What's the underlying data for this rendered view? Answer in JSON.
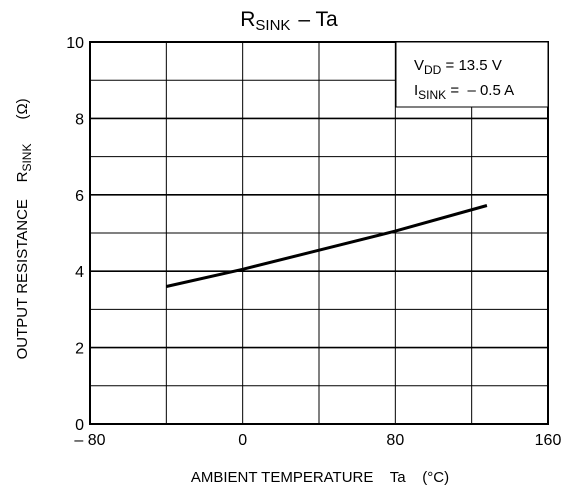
{
  "chart_data": {
    "type": "line",
    "title_main": "R",
    "title_sub": "SINK",
    "title_rest": "–  Ta",
    "xlabel": "AMBIENT TEMPERATURE    Ta    (°C)",
    "ylabel_main": "OUTPUT RESISTANCE    R",
    "ylabel_sub": "SINK",
    "ylabel_unit": "(Ω)",
    "xlim": [
      -80,
      160
    ],
    "ylim": [
      0,
      10
    ],
    "x_ticks": [
      -80,
      0,
      80,
      160
    ],
    "x_tick_labels": [
      "– 80",
      "0",
      "80",
      "160"
    ],
    "y_ticks": [
      0,
      2,
      4,
      6,
      8,
      10
    ],
    "y_tick_labels": [
      "0",
      "2",
      "4",
      "6",
      "8",
      "10"
    ],
    "x_grid_step": 40,
    "y_grid_step": 1,
    "grid": true,
    "conditions": [
      {
        "main": "V",
        "sub": "DD",
        "rest": " = 13.5 V"
      },
      {
        "main": "I",
        "sub": "SINK",
        "rest": " =  – 0.5 A"
      }
    ],
    "series": [
      {
        "x": [
          -40,
          0,
          40,
          80,
          128
        ],
        "y": [
          3.6,
          4.05,
          4.55,
          5.05,
          5.72
        ]
      }
    ]
  }
}
